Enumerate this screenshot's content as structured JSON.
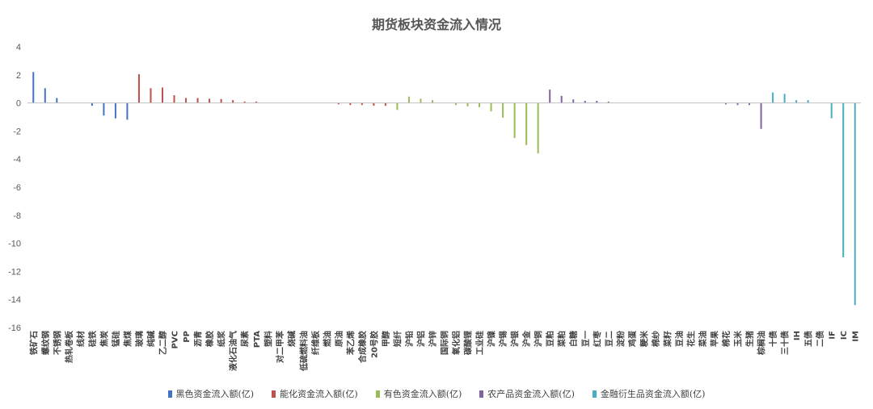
{
  "chart_data": {
    "type": "bar",
    "title": "期货板块资金流入情况",
    "ylim": [
      -16,
      4
    ],
    "yticks": [
      4,
      2,
      0,
      -2,
      -4,
      -6,
      -8,
      -10,
      -12,
      -14,
      -16
    ],
    "grid": false,
    "legend_position": "bottom",
    "categories": [
      "铁矿石",
      "螺纹钢",
      "不锈钢",
      "热轧卷板",
      "线材",
      "硅铁",
      "焦炭",
      "锰硅",
      "焦煤",
      "玻璃",
      "纯碱",
      "乙二醇",
      "PVC",
      "PP",
      "沥青",
      "橡胶",
      "纸浆",
      "液化石油气",
      "尿素",
      "PTA",
      "塑料",
      "对二甲苯",
      "烧碱",
      "低硫燃料油",
      "纤维板",
      "燃油",
      "原油",
      "苯乙烯",
      "合成橡胶",
      "20号胶",
      "甲醇",
      "短纤",
      "沪铅",
      "沪铝",
      "沪锌",
      "国际铜",
      "氧化铝",
      "碳酸锂",
      "工业硅",
      "沪镍",
      "沪锡",
      "沪银",
      "沪金",
      "沪铜",
      "豆粕",
      "菜粕",
      "白糖",
      "豆一",
      "红枣",
      "豆二",
      "淀粉",
      "鸡蛋",
      "粳米",
      "棉纱",
      "菜籽",
      "豆油",
      "花生",
      "菜油",
      "苹果",
      "棉花",
      "玉米",
      "生猪",
      "棕榈油",
      "十债",
      "三十债",
      "IH",
      "五债",
      "二债",
      "IF",
      "IC",
      "IM"
    ],
    "values": [
      2.2,
      1.05,
      0.35,
      0.0,
      0.0,
      -0.2,
      -0.9,
      -1.1,
      -1.2,
      2.05,
      1.05,
      1.1,
      0.55,
      0.35,
      0.35,
      0.3,
      0.28,
      0.2,
      0.1,
      0.1,
      0.0,
      0.0,
      0.0,
      0.0,
      0.0,
      0.0,
      -0.1,
      -0.15,
      -0.15,
      -0.2,
      -0.2,
      -0.5,
      0.45,
      0.3,
      0.2,
      0.0,
      -0.15,
      -0.25,
      -0.3,
      -0.6,
      -1.05,
      -2.5,
      -3.0,
      -3.6,
      0.95,
      0.5,
      0.25,
      0.15,
      0.15,
      0.1,
      0.0,
      0.0,
      0.0,
      0.0,
      0.0,
      0.0,
      0.0,
      0.0,
      0.0,
      -0.1,
      -0.15,
      -0.15,
      -1.85,
      0.75,
      0.65,
      0.2,
      0.2,
      0.0,
      -1.1,
      -11.0,
      -14.4
    ],
    "sector_sizes": [
      9,
      22,
      13,
      19,
      8
    ],
    "series": [
      {
        "name": "黑色资金流入额(亿)",
        "color": "#4472C4"
      },
      {
        "name": "能化资金流入额(亿)",
        "color": "#C0504D"
      },
      {
        "name": "有色资金流入额(亿)",
        "color": "#9BBB59"
      },
      {
        "name": "农产品资金流入额(亿)",
        "color": "#8064A2"
      },
      {
        "name": "金融衍生品资金流入额(亿)",
        "color": "#4BACC6"
      }
    ]
  }
}
